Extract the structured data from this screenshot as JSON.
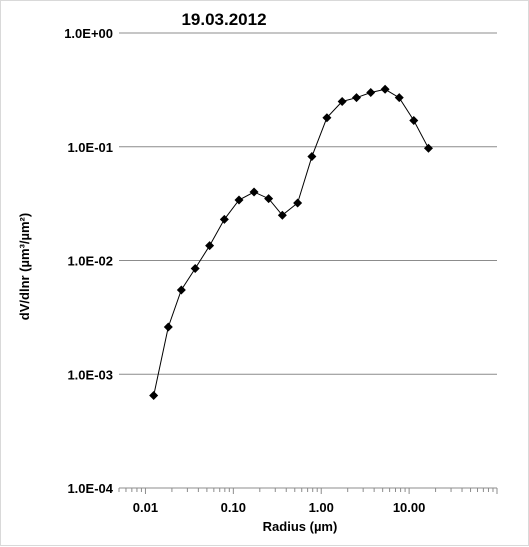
{
  "chart_data": {
    "type": "scatter",
    "title": "19.03.2012",
    "xlabel": "Radius (µm)",
    "ylabel": "dV/dlnr (µm³/µm²)",
    "x_scale": "log",
    "y_scale": "log",
    "xlim": [
      0.005,
      100
    ],
    "ylim": [
      0.0001,
      1
    ],
    "x_tick_labels": [
      {
        "value": 0.01,
        "label": "0.01"
      },
      {
        "value": 0.1,
        "label": "0.10"
      },
      {
        "value": 1,
        "label": "1.00"
      },
      {
        "value": 10,
        "label": "10.00"
      }
    ],
    "y_tick_labels": [
      {
        "value": 1,
        "label": "1.0E+00"
      },
      {
        "value": 0.1,
        "label": "1.0E-01"
      },
      {
        "value": 0.01,
        "label": "1.0E-02"
      },
      {
        "value": 0.001,
        "label": "1.0E-03"
      },
      {
        "value": 0.0001,
        "label": "1.0E-04"
      }
    ],
    "grid": "horizontal major",
    "legend": "none",
    "marker": "diamond",
    "line": "connected",
    "color": "#000000",
    "gridline_color": "#8c8c8c",
    "x": [
      0.0124,
      0.0182,
      0.0256,
      0.0368,
      0.0537,
      0.079,
      0.116,
      0.172,
      0.252,
      0.361,
      0.539,
      0.783,
      1.16,
      1.73,
      2.52,
      3.66,
      5.33,
      7.72,
      11.3,
      16.6
    ],
    "y": [
      0.00065,
      0.0026,
      0.0055,
      0.0085,
      0.0135,
      0.023,
      0.034,
      0.04,
      0.035,
      0.025,
      0.032,
      0.082,
      0.18,
      0.25,
      0.27,
      0.3,
      0.32,
      0.27,
      0.17,
      0.097
    ]
  }
}
